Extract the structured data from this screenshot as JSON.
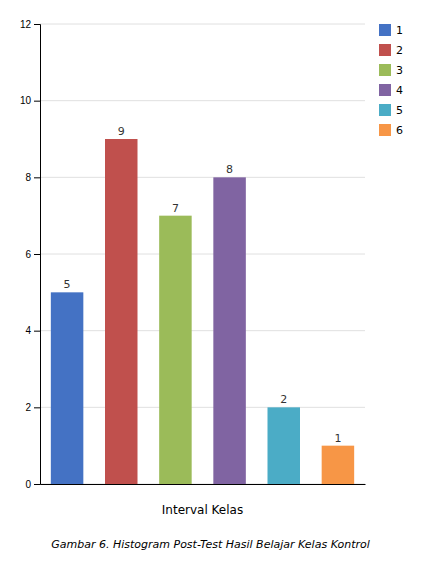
{
  "chart_data": {
    "type": "bar",
    "title": "Gambar  6. Histogram Post-Test Hasil Belajar Kelas Kontrol",
    "xlabel": "Interval Kelas",
    "categories": [
      "1",
      "2",
      "3",
      "4",
      "5",
      "6"
    ],
    "values": [
      5,
      9,
      7,
      8,
      2,
      1
    ],
    "colors": [
      "#4472C4",
      "#C0504D",
      "#9BBB59",
      "#8064A2",
      "#4BACC6",
      "#F79646"
    ],
    "ylim": [
      0,
      12
    ],
    "yticks": [
      0,
      2,
      4,
      6,
      8,
      10,
      12
    ],
    "grid": true,
    "legend": "upper right",
    "data_labels": true,
    "tick_labels": "y"
  }
}
